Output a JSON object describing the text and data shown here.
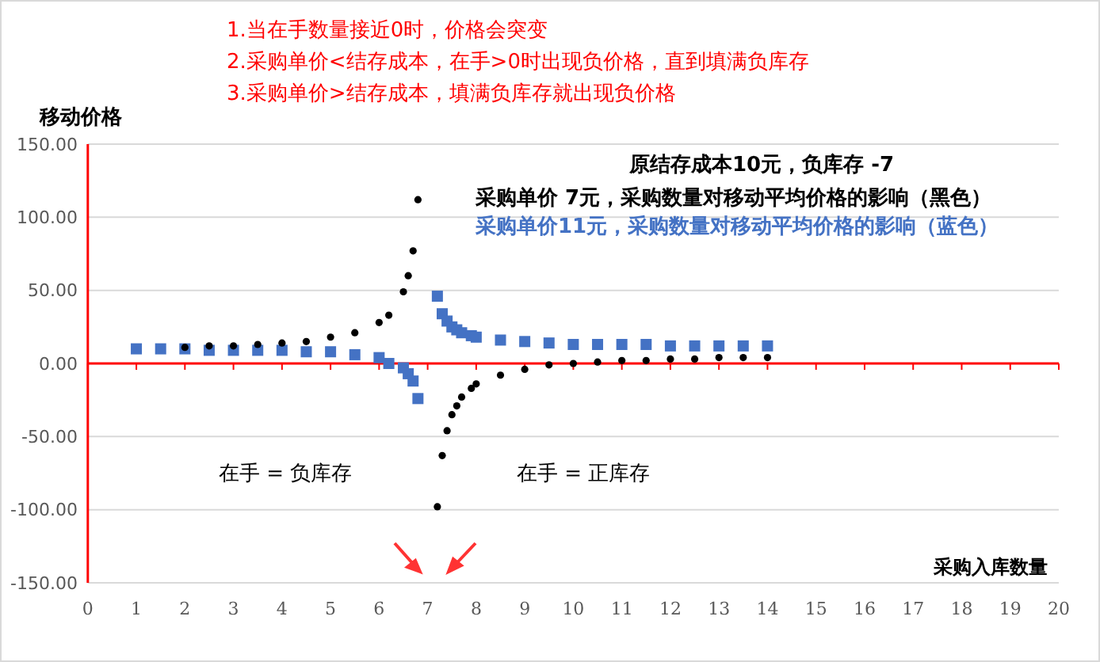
{
  "chart_data": {
    "type": "scatter",
    "ylabel": "移动价格",
    "xlabel": "采购入库数量",
    "annotations": [
      "1.当在手数量接近0时，价格会突变",
      "2.采购单价<结存成本，在手>0时出现负价格，直到填满负库存",
      "3.采购单价>结存成本，填满负库存就出现负价格",
      "原结存成本10元，负库存 -7",
      "在手 = 负库存",
      "在手 = 正库存"
    ],
    "xlim": [
      0,
      20
    ],
    "xticks": [
      0,
      1,
      2,
      3,
      4,
      5,
      6,
      7,
      8,
      9,
      10,
      11,
      12,
      13,
      14,
      15,
      16,
      17,
      18,
      19,
      20
    ],
    "ylim": [
      -150,
      150
    ],
    "yticks": [
      {
        "value": -150,
        "label": "-150.00"
      },
      {
        "value": -100,
        "label": "-100.00"
      },
      {
        "value": -50,
        "label": "-50.00"
      },
      {
        "value": 0,
        "label": "0.00"
      },
      {
        "value": 50,
        "label": "50.00"
      },
      {
        "value": 100,
        "label": "100.00"
      },
      {
        "value": 150,
        "label": "150.00"
      }
    ],
    "grid": "y",
    "legend": "top right",
    "ref_lines": [
      {
        "axis": "y",
        "value": 0,
        "color": "#ff0000"
      }
    ],
    "series": [
      {
        "name": "采购单价 7元，采购数量对移动平均价格的影响（黑色）",
        "color": "#000000",
        "marker": "circle",
        "x": [
          2,
          2.5,
          3,
          3.5,
          4,
          4.5,
          5,
          5.5,
          6,
          6.2,
          6.5,
          6.6,
          6.7,
          6.8,
          7.2,
          7.3,
          7.4,
          7.5,
          7.6,
          7.7,
          7.9,
          8,
          8.5,
          9,
          9.5,
          10,
          10.5,
          11,
          11.5,
          12,
          12.5,
          13,
          13.5,
          14
        ],
        "values": [
          11,
          12,
          12,
          13,
          14,
          15,
          18,
          21,
          28,
          33,
          49,
          60,
          77,
          112,
          -98,
          -63,
          -46,
          -35,
          -29,
          -23,
          -17,
          -14,
          -8,
          -4,
          -1,
          0,
          1,
          2,
          2,
          3,
          3,
          4,
          4,
          4
        ]
      },
      {
        "name": "采购单价11元，采购数量对移动平均价格的影响（蓝色）",
        "color": "#4472c4",
        "marker": "square",
        "x": [
          1,
          1.5,
          2,
          2.5,
          3,
          3.5,
          4,
          4.5,
          5,
          5.5,
          6,
          6.2,
          6.5,
          6.6,
          6.7,
          6.8,
          7.2,
          7.3,
          7.4,
          7.5,
          7.6,
          7.7,
          7.9,
          8,
          8.5,
          9,
          9.5,
          10,
          10.5,
          11,
          11.5,
          12,
          12.5,
          13,
          13.5,
          14
        ],
        "values": [
          10,
          10,
          10,
          9,
          9,
          9,
          9,
          8,
          8,
          6,
          4,
          0,
          -3,
          -7,
          -12,
          -24,
          46,
          34,
          29,
          25,
          23,
          21,
          19,
          18,
          16,
          15,
          14,
          13,
          13,
          13,
          13,
          12,
          12,
          12,
          12,
          12
        ]
      }
    ]
  }
}
